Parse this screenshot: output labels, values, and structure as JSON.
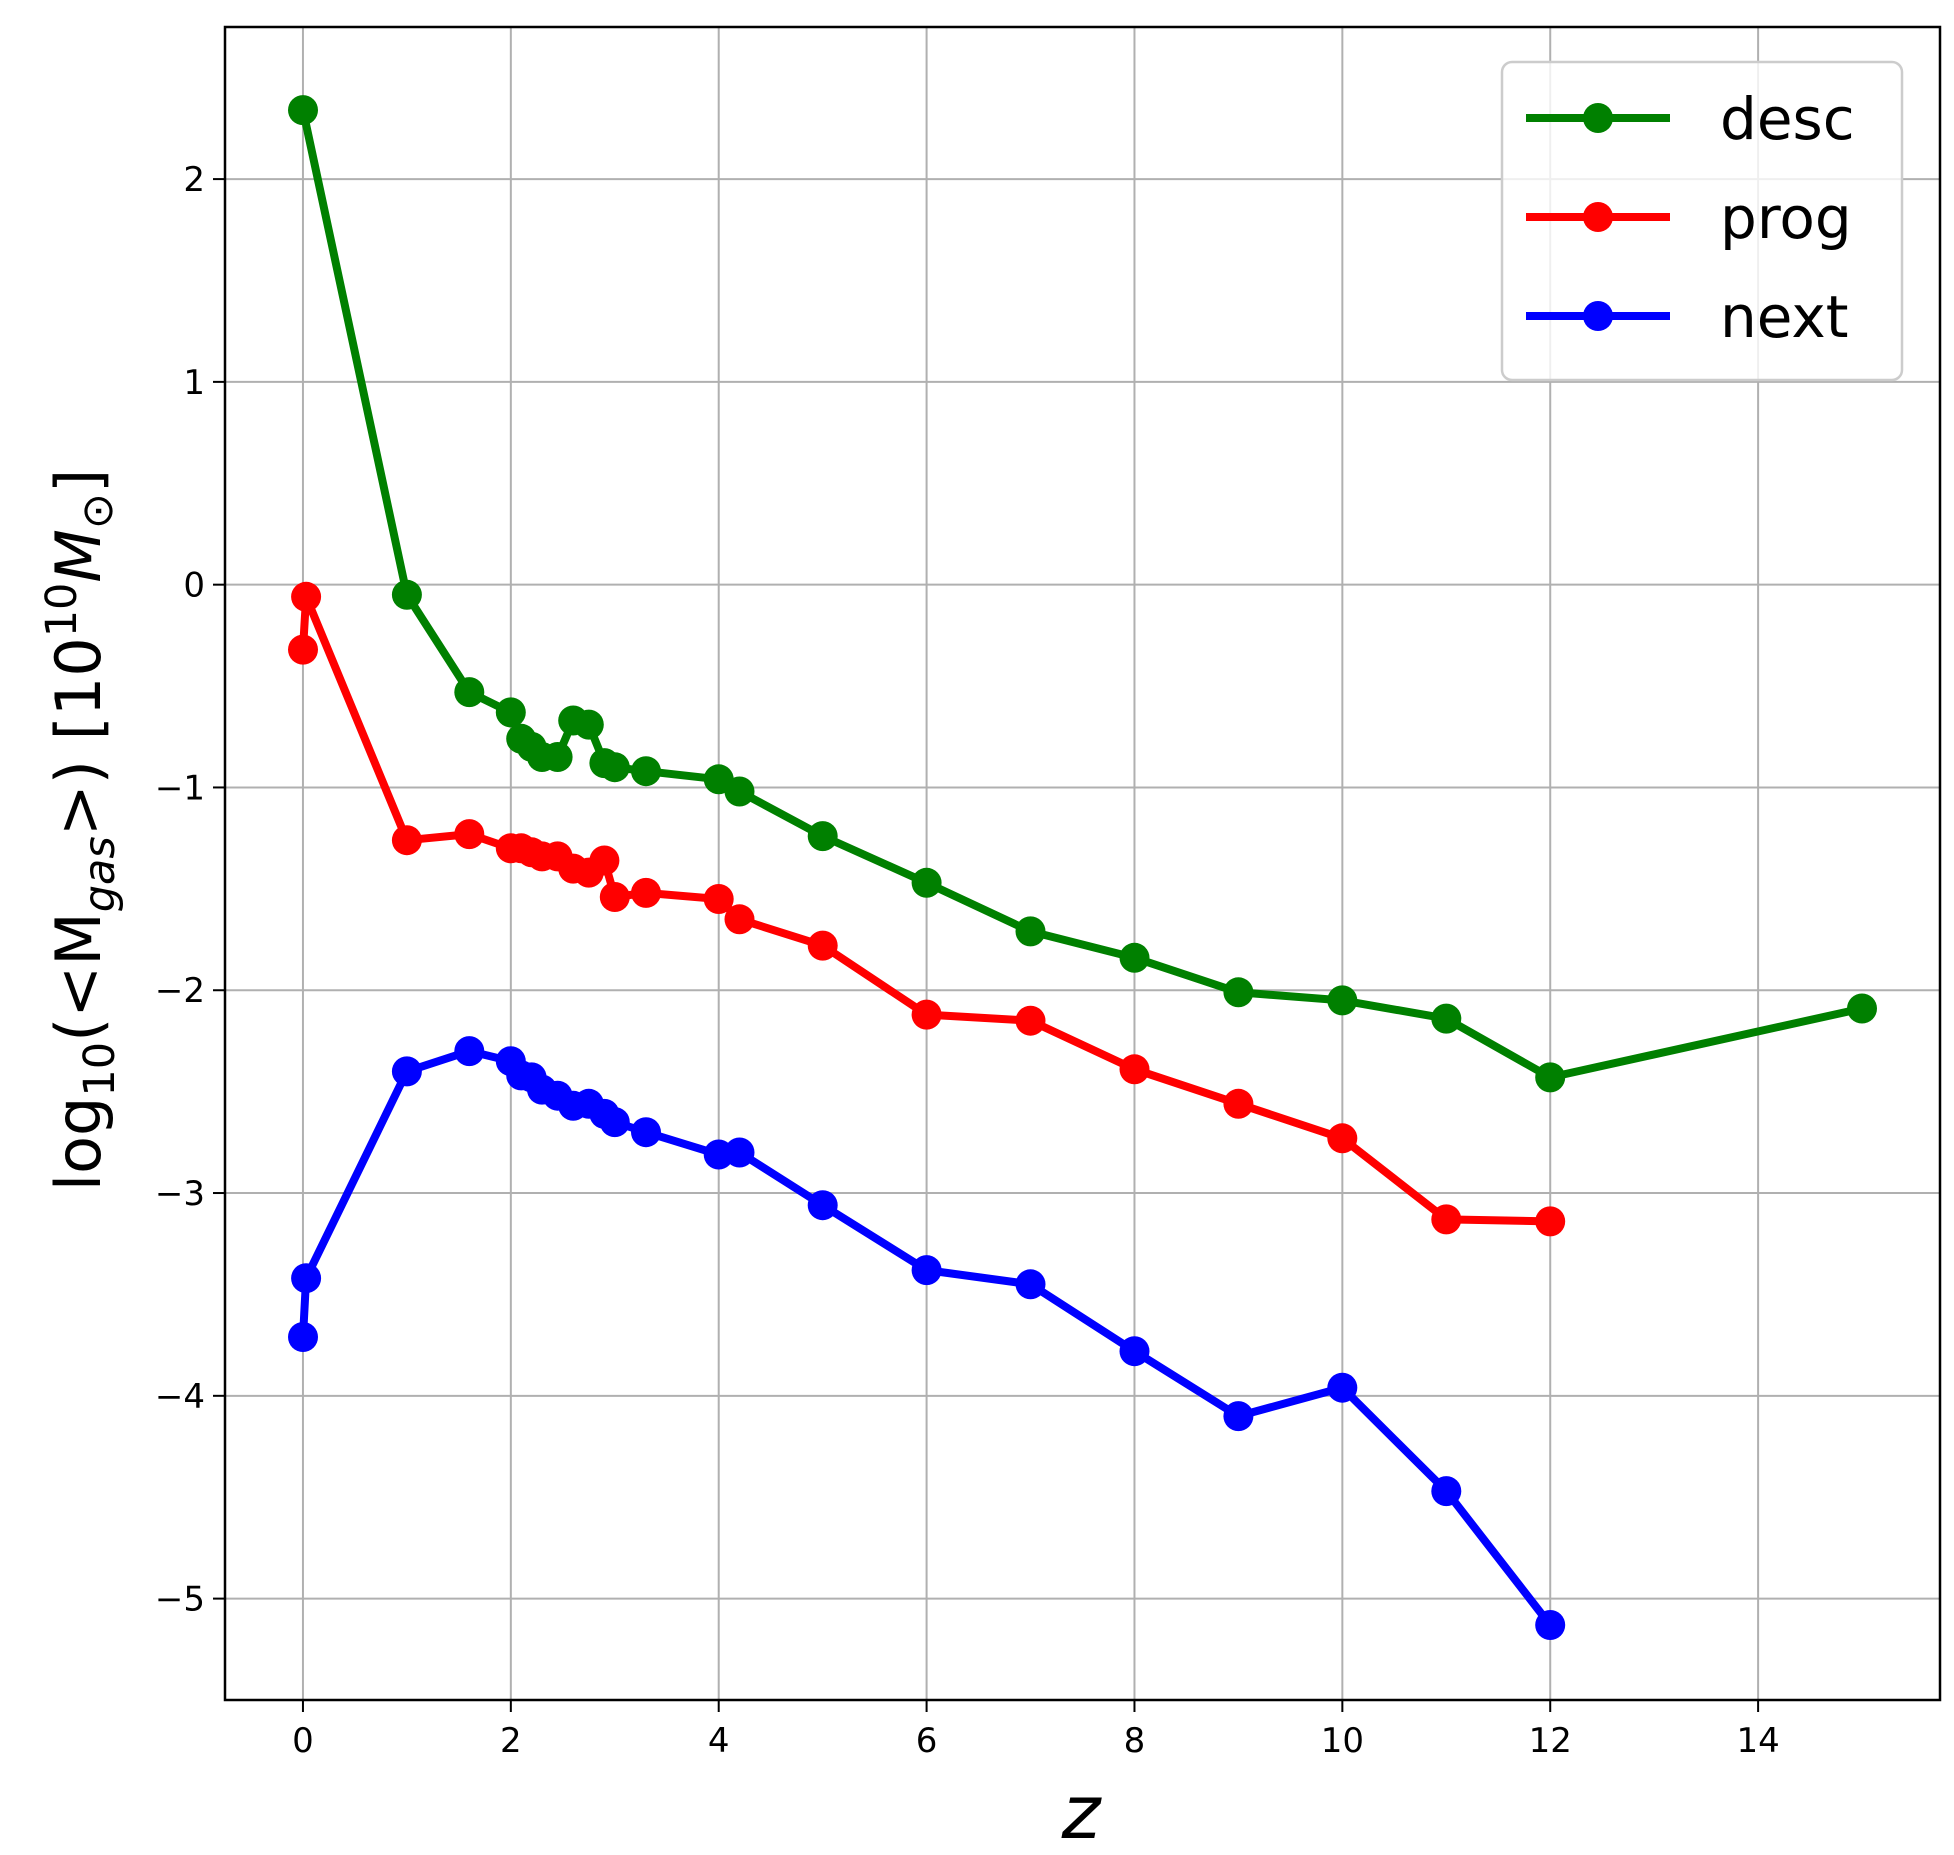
{
  "chart_data": {
    "type": "line",
    "title": "",
    "xlabel": "z",
    "ylabel": {
      "prefix": "log",
      "sub": "10",
      "open": "(<M",
      "gas_sub": "gas",
      "close": ">) [10",
      "exp": "10",
      "unit": "M",
      "sun": "⊙",
      "end": "]"
    },
    "xlim": [
      -0.75,
      15.75
    ],
    "ylim": [
      -5.5,
      2.75
    ],
    "xticks": [
      0,
      2,
      4,
      6,
      8,
      10,
      12,
      14
    ],
    "xtick_labels": [
      "0",
      "2",
      "4",
      "6",
      "8",
      "10",
      "12",
      "14"
    ],
    "yticks": [
      2,
      1,
      0,
      -1,
      -2,
      -3,
      -4,
      -5
    ],
    "ytick_labels": [
      "2",
      "1",
      "0",
      "−1",
      "−2",
      "−3",
      "−4",
      "−5"
    ],
    "grid": true,
    "legend": "top-right",
    "series": [
      {
        "name": "desc",
        "color": "#008000",
        "points": [
          [
            0.0,
            2.34
          ],
          [
            1.0,
            -0.05
          ],
          [
            1.6,
            -0.53
          ],
          [
            2.0,
            -0.63
          ],
          [
            2.1,
            -0.76
          ],
          [
            2.2,
            -0.8
          ],
          [
            2.3,
            -0.85
          ],
          [
            2.45,
            -0.85
          ],
          [
            2.6,
            -0.67
          ],
          [
            2.75,
            -0.69
          ],
          [
            2.9,
            -0.88
          ],
          [
            3.0,
            -0.9
          ],
          [
            3.3,
            -0.92
          ],
          [
            4.0,
            -0.96
          ],
          [
            4.2,
            -1.02
          ],
          [
            5.0,
            -1.24
          ],
          [
            6.0,
            -1.47
          ],
          [
            7.0,
            -1.71
          ],
          [
            8.0,
            -1.84
          ],
          [
            9.0,
            -2.01
          ],
          [
            10.0,
            -2.05
          ],
          [
            11.0,
            -2.14
          ],
          [
            12.0,
            -2.43
          ],
          [
            15.0,
            -2.09
          ]
        ]
      },
      {
        "name": "prog",
        "color": "#ff0000",
        "points": [
          [
            0.0,
            -0.32
          ],
          [
            0.03,
            -0.06
          ],
          [
            1.0,
            -1.26
          ],
          [
            1.6,
            -1.23
          ],
          [
            2.0,
            -1.3
          ],
          [
            2.1,
            -1.3
          ],
          [
            2.2,
            -1.32
          ],
          [
            2.3,
            -1.34
          ],
          [
            2.45,
            -1.34
          ],
          [
            2.6,
            -1.4
          ],
          [
            2.75,
            -1.42
          ],
          [
            2.9,
            -1.36
          ],
          [
            3.0,
            -1.54
          ],
          [
            3.3,
            -1.52
          ],
          [
            4.0,
            -1.55
          ],
          [
            4.2,
            -1.65
          ],
          [
            5.0,
            -1.78
          ],
          [
            6.0,
            -2.12
          ],
          [
            7.0,
            -2.15
          ],
          [
            8.0,
            -2.39
          ],
          [
            9.0,
            -2.56
          ],
          [
            10.0,
            -2.73
          ],
          [
            11.0,
            -3.13
          ],
          [
            12.0,
            -3.14
          ]
        ]
      },
      {
        "name": "next",
        "color": "#0000ff",
        "points": [
          [
            0.0,
            -3.71
          ],
          [
            0.03,
            -3.42
          ],
          [
            1.0,
            -2.4
          ],
          [
            1.6,
            -2.3
          ],
          [
            2.0,
            -2.35
          ],
          [
            2.1,
            -2.42
          ],
          [
            2.2,
            -2.43
          ],
          [
            2.3,
            -2.49
          ],
          [
            2.45,
            -2.52
          ],
          [
            2.6,
            -2.57
          ],
          [
            2.75,
            -2.56
          ],
          [
            2.9,
            -2.61
          ],
          [
            3.0,
            -2.65
          ],
          [
            3.3,
            -2.7
          ],
          [
            4.0,
            -2.81
          ],
          [
            4.2,
            -2.8
          ],
          [
            5.0,
            -3.06
          ],
          [
            6.0,
            -3.38
          ],
          [
            7.0,
            -3.45
          ],
          [
            8.0,
            -3.78
          ],
          [
            9.0,
            -4.1
          ],
          [
            10.0,
            -3.96
          ],
          [
            11.0,
            -4.47
          ],
          [
            12.0,
            -5.13
          ]
        ]
      }
    ]
  }
}
